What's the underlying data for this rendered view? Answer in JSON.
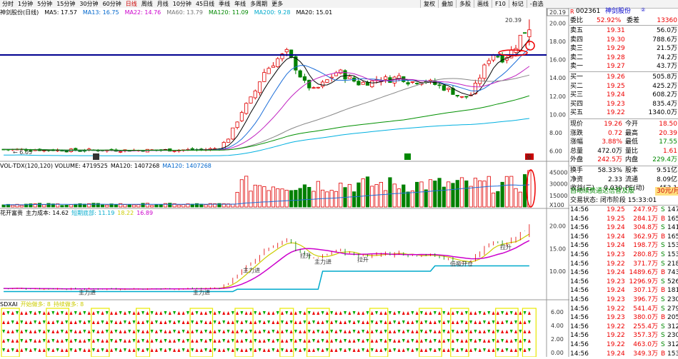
{
  "toolbar": {
    "periods": [
      "分时",
      "1分钟",
      "5分钟",
      "15分钟",
      "30分钟",
      "60分钟",
      "日线",
      "周线",
      "月线",
      "10分钟",
      "45日线",
      "季线",
      "年线",
      "多周期",
      "更多"
    ],
    "active_period": "日线",
    "right_buttons": [
      "复权",
      "叠加",
      "多股",
      "画线",
      "F10",
      "标记",
      "-自选"
    ]
  },
  "main_legend": {
    "title": "神剑股份(日线)",
    "items": [
      {
        "text": "MA5: 17.57",
        "color": "#000000"
      },
      {
        "text": "MA13: 16.75",
        "color": "#0066cc"
      },
      {
        "text": "MA22: 14.76",
        "color": "#cc00cc"
      },
      {
        "text": "MA60: 13.79",
        "color": "#777777"
      },
      {
        "text": "MA120: 11.09",
        "color": "#008800"
      },
      {
        "text": "MA200: 9.28",
        "color": "#00aacc"
      },
      {
        "text": "MA20: 15.01",
        "color": "#000000"
      }
    ]
  },
  "main_chart": {
    "high_label": "20.39",
    "low_label": "6.05",
    "tag_label": "涨",
    "y_ticks": [
      "20.19",
      "20.00",
      "18.00",
      "16.00",
      "14.00",
      "12.00",
      "10.00",
      "8.00",
      "6.00"
    ],
    "colors": {
      "up": "#e00000",
      "down": "#008000",
      "ma5": "#000000",
      "ma13": "#1e6fd9",
      "ma22": "#c020c0",
      "ma60": "#888888",
      "ma120": "#009000",
      "ma200": "#00b0e0",
      "hline": "#000090"
    }
  },
  "vol_legend": {
    "items": [
      {
        "text": "VOL-TDX(120,120) VOLUME: 4719525",
        "color": "#000000"
      },
      {
        "text": "MA120: 1407268",
        "color": "#000000"
      },
      {
        "text": "MA120: 1407268",
        "color": "#0066cc"
      }
    ],
    "y_ticks": [
      "45000",
      "30000",
      "15000",
      "X100"
    ]
  },
  "cost_legend": {
    "items": [
      {
        "text": "花开富贵",
        "color": "#000000"
      },
      {
        "text": "主力成本: 14.62",
        "color": "#000000"
      },
      {
        "text": "短期底部: 11.19",
        "color": "#00aacc"
      },
      {
        "text": "18.22",
        "color": "#cccc00"
      },
      {
        "text": "16.89",
        "color": "#cc00cc"
      }
    ],
    "y_ticks": [
      "20.00",
      "15.00",
      "10.00"
    ],
    "annotations": [
      "主力进",
      "主力进",
      "主力进",
      "拉升",
      "主力进",
      "拉升",
      "低吸开仓",
      "拉升"
    ]
  },
  "sign_legend": {
    "items": [
      {
        "text": "SDXAI",
        "color": "#000000"
      },
      {
        "text": "开始做多: 8",
        "color": "#cccc00"
      },
      {
        "text": "持续做多: 8",
        "color": "#cccc00"
      }
    ],
    "y_ticks": [
      "6.00",
      "4.00",
      "2.00",
      "0.00"
    ]
  },
  "stock": {
    "code": "002361",
    "name": "神剑股份",
    "price_top": "20.19"
  },
  "order_book": {
    "ratio": {
      "label": "委比",
      "value": "52.92%",
      "diff_label": "委差",
      "diff": "13360"
    },
    "sells": [
      {
        "label": "卖五",
        "price": "19.31",
        "vol": "56.0万"
      },
      {
        "label": "卖四",
        "price": "19.30",
        "vol": "788.6万"
      },
      {
        "label": "卖三",
        "price": "19.29",
        "vol": "21.5万"
      },
      {
        "label": "卖二",
        "price": "19.28",
        "vol": "74.2万"
      },
      {
        "label": "卖一",
        "price": "19.27",
        "vol": "43.7万"
      }
    ],
    "buys": [
      {
        "label": "买一",
        "price": "19.26",
        "vol": "505.8万"
      },
      {
        "label": "买二",
        "price": "19.25",
        "vol": "425.2万"
      },
      {
        "label": "买三",
        "price": "19.24",
        "vol": "608.2万"
      },
      {
        "label": "买四",
        "price": "19.23",
        "vol": "835.4万"
      },
      {
        "label": "买五",
        "price": "19.22",
        "vol": "1340.0万"
      }
    ]
  },
  "quote": [
    {
      "l1": "现价",
      "v1": "19.26",
      "c1": "red",
      "l2": "今开",
      "v2": "18.50",
      "c2": "red"
    },
    {
      "l1": "涨跌",
      "v1": "0.72",
      "c1": "red",
      "l2": "最高",
      "v2": "20.39",
      "c2": "red"
    },
    {
      "l1": "涨幅",
      "v1": "3.88%",
      "c1": "red",
      "l2": "最低",
      "v2": "17.55",
      "c2": "green"
    },
    {
      "l1": "总量",
      "v1": "472.0万",
      "c1": "",
      "l2": "量比",
      "v2": "1.61",
      "c2": "red"
    },
    {
      "l1": "外盘",
      "v1": "242.5万",
      "c1": "red",
      "l2": "内盘",
      "v2": "229.4万",
      "c2": "green"
    }
  ],
  "quote2": [
    {
      "l1": "换手",
      "v1": "58.33%",
      "l2": "股本",
      "v2": "9.51亿"
    },
    {
      "l1": "净资",
      "v1": "2.33",
      "l2": "流通",
      "v2": "8.09亿"
    },
    {
      "l1": "收益(三)",
      "v1": "0.030",
      "l2": "PE(动)",
      "v2": "453.1"
    }
  ],
  "promo": {
    "text": "自动续费通达信普及版",
    "price": "30元/月"
  },
  "trade_status": "交易状态: 闭市阶段 15:33:01",
  "ticks": [
    {
      "t": "14:56",
      "p": "19.25",
      "v": "247.9万",
      "s": "S",
      "n": "147"
    },
    {
      "t": "14:56",
      "p": "19.25",
      "v": "284.1万",
      "s": "B",
      "n": "165"
    },
    {
      "t": "14:56",
      "p": "19.24",
      "v": "304.8万",
      "s": "S",
      "n": "141"
    },
    {
      "t": "14:56",
      "p": "19.24",
      "v": "362.9万",
      "s": "B",
      "n": "165"
    },
    {
      "t": "14:56",
      "p": "19.24",
      "v": "198.7万",
      "s": "S",
      "n": "153"
    },
    {
      "t": "14:56",
      "p": "19.23",
      "v": "280.8万",
      "s": "S",
      "n": "153"
    },
    {
      "t": "14:56",
      "p": "19.22",
      "v": "371.7万",
      "s": "S",
      "n": "218"
    },
    {
      "t": "14:56",
      "p": "19.24",
      "v": "1489.6万",
      "s": "B",
      "n": "743"
    },
    {
      "t": "14:56",
      "p": "19.23",
      "v": "1296.9万",
      "s": "S",
      "n": "526"
    },
    {
      "t": "14:56",
      "p": "19.24",
      "v": "307.1万",
      "s": "B",
      "n": "181"
    },
    {
      "t": "14:56",
      "p": "19.23",
      "v": "396.7万",
      "s": "S",
      "n": "230"
    },
    {
      "t": "14:56",
      "p": "19.22",
      "v": "541.4万",
      "s": "S",
      "n": "279"
    },
    {
      "t": "14:56",
      "p": "19.23",
      "v": "380.0万",
      "s": "B",
      "n": "205"
    },
    {
      "t": "14:56",
      "p": "19.22",
      "v": "255.4万",
      "s": "S",
      "n": "312"
    },
    {
      "t": "14:56",
      "p": "19.22",
      "v": "357.3万",
      "s": "S",
      "n": "230"
    },
    {
      "t": "14:56",
      "p": "19.22",
      "v": "463.0万",
      "s": "S",
      "n": "312"
    },
    {
      "t": "14:56",
      "p": "19.24",
      "v": "349.3万",
      "s": "B",
      "n": "153"
    }
  ]
}
